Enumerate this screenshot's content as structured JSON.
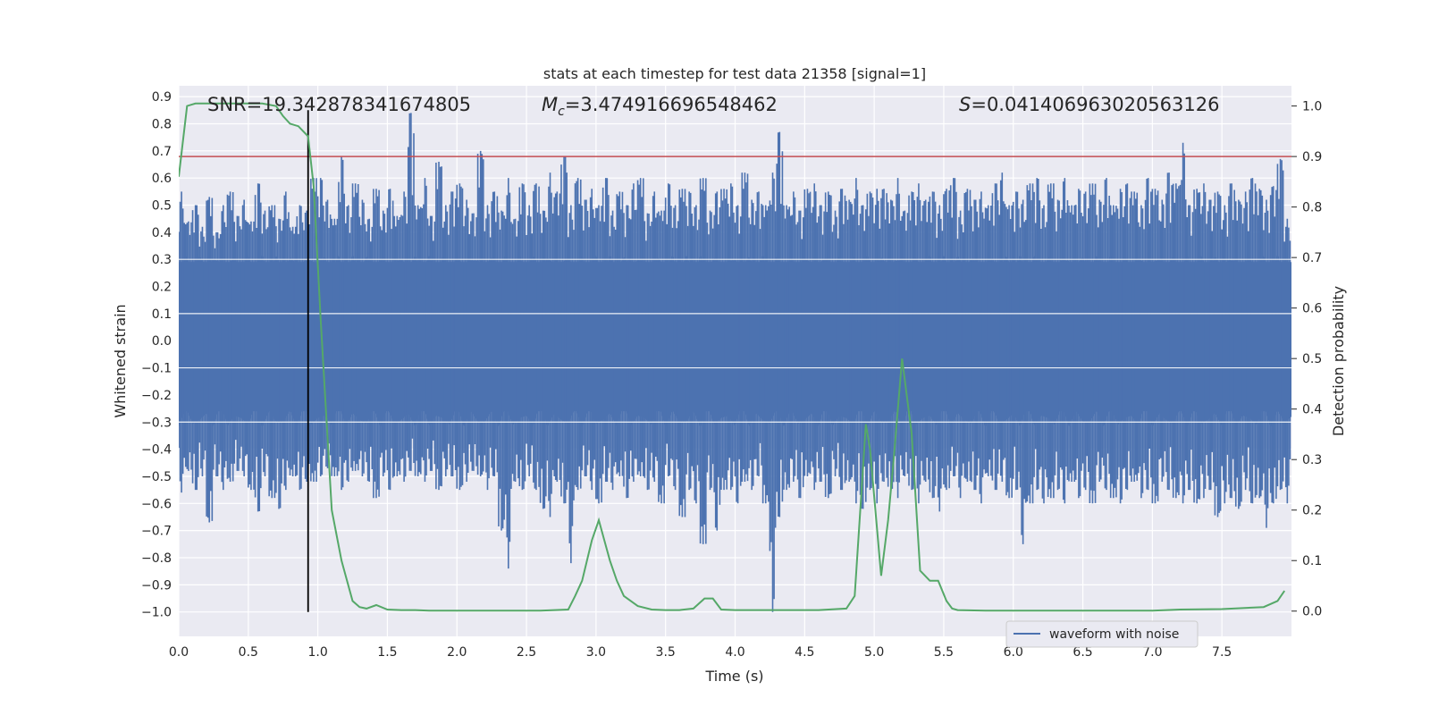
{
  "chart_data": {
    "type": "line",
    "title": "stats at each timestep for test data 21358 [signal=1]",
    "xlabel": "Time (s)",
    "ylabel": "Whitened strain",
    "y2label": "Detection probability",
    "xlim": [
      0.0,
      8.0
    ],
    "ylim": [
      -1.09,
      0.94
    ],
    "y2lim": [
      -0.05,
      1.04
    ],
    "x_ticks": [
      "0.0",
      "0.5",
      "1.0",
      "1.5",
      "2.0",
      "2.5",
      "3.0",
      "3.5",
      "4.0",
      "4.5",
      "5.0",
      "5.5",
      "6.0",
      "6.5",
      "7.0",
      "7.5"
    ],
    "y_ticks": [
      "0.9",
      "0.8",
      "0.7",
      "0.6",
      "0.5",
      "0.4",
      "0.3",
      "0.2",
      "0.1",
      "0.0",
      "-0.1",
      "-0.2",
      "-0.3",
      "-0.4",
      "-0.5",
      "-0.6",
      "-0.7",
      "-0.8",
      "-0.9",
      "-1.0"
    ],
    "y2_ticks": [
      "1.0",
      "0.9",
      "0.8",
      "0.7",
      "0.6",
      "0.5",
      "0.4",
      "0.3",
      "0.2",
      "0.1",
      "0.0"
    ],
    "grid": true,
    "legend": {
      "position": "bottom-right",
      "entries": [
        "waveform with noise"
      ]
    },
    "annotations": {
      "snr": "SNR=19.342878341674805",
      "mc_symbol": "M",
      "mc_sub": "c",
      "mc_value": "=3.474916696548462",
      "s_symbol": "S",
      "s_value": "=0.041406963020563126"
    },
    "threshold": {
      "axis": "y2",
      "value": 0.9
    },
    "vline": {
      "x": 0.93,
      "ymin": -1.0,
      "ymax": 0.85
    },
    "colors": {
      "waveform": "#4c72b0",
      "probability": "#55a868",
      "threshold": "#c44e52",
      "vline": "#000000",
      "background": "#eaeaf2",
      "grid": "#ffffff"
    },
    "series": [
      {
        "name": "waveform with noise",
        "axis": "y",
        "envelope_note": "dense noise; upper and lower extremes sampled every 0.05 s",
        "x": [
          0.0,
          0.05,
          0.1,
          0.15,
          0.2,
          0.25,
          0.3,
          0.35,
          0.4,
          0.45,
          0.5,
          0.55,
          0.6,
          0.65,
          0.7,
          0.75,
          0.8,
          0.85,
          0.9,
          0.95,
          1.0,
          1.05,
          1.1,
          1.15,
          1.2,
          1.25,
          1.3,
          1.35,
          1.4,
          1.45,
          1.5,
          1.55,
          1.6,
          1.65,
          1.7,
          1.75,
          1.8,
          1.85,
          1.9,
          1.95,
          2.0,
          2.05,
          2.1,
          2.15,
          2.2,
          2.25,
          2.3,
          2.35,
          2.4,
          2.45,
          2.5,
          2.55,
          2.6,
          2.65,
          2.7,
          2.75,
          2.8,
          2.85,
          2.9,
          2.95,
          3.0,
          3.05,
          3.1,
          3.15,
          3.2,
          3.25,
          3.3,
          3.35,
          3.4,
          3.45,
          3.5,
          3.55,
          3.6,
          3.65,
          3.7,
          3.75,
          3.8,
          3.85,
          3.9,
          3.95,
          4.0,
          4.05,
          4.1,
          4.15,
          4.2,
          4.25,
          4.3,
          4.35,
          4.4,
          4.45,
          4.5,
          4.55,
          4.6,
          4.65,
          4.7,
          4.75,
          4.8,
          4.85,
          4.9,
          4.95,
          5.0,
          5.05,
          5.1,
          5.15,
          5.2,
          5.25,
          5.3,
          5.35,
          5.4,
          5.45,
          5.5,
          5.55,
          5.6,
          5.65,
          5.7,
          5.75,
          5.8,
          5.85,
          5.9,
          5.95,
          6.0,
          6.05,
          6.1,
          6.15,
          6.2,
          6.25,
          6.3,
          6.35,
          6.4,
          6.45,
          6.5,
          6.55,
          6.6,
          6.65,
          6.7,
          6.75,
          6.8,
          6.85,
          6.9,
          6.95,
          7.0,
          7.05,
          7.1,
          7.15,
          7.2,
          7.25,
          7.3,
          7.35,
          7.4,
          7.45,
          7.5,
          7.55,
          7.6,
          7.65,
          7.7,
          7.75,
          7.8,
          7.85,
          7.9,
          7.95
        ],
        "y_upper": [
          0.55,
          0.44,
          0.5,
          0.42,
          0.53,
          0.4,
          0.5,
          0.55,
          0.46,
          0.52,
          0.44,
          0.58,
          0.48,
          0.5,
          0.45,
          0.55,
          0.42,
          0.5,
          0.48,
          0.6,
          0.6,
          0.52,
          0.45,
          0.68,
          0.5,
          0.58,
          0.52,
          0.45,
          0.56,
          0.48,
          0.56,
          0.46,
          0.55,
          0.84,
          0.5,
          0.6,
          0.46,
          0.66,
          0.5,
          0.55,
          0.58,
          0.52,
          0.47,
          0.7,
          0.5,
          0.55,
          0.48,
          0.6,
          0.45,
          0.58,
          0.5,
          0.58,
          0.48,
          0.62,
          0.55,
          0.68,
          0.5,
          0.6,
          0.52,
          0.56,
          0.5,
          0.6,
          0.48,
          0.55,
          0.5,
          0.58,
          0.6,
          0.47,
          0.55,
          0.48,
          0.58,
          0.5,
          0.56,
          0.55,
          0.5,
          0.6,
          0.48,
          0.55,
          0.56,
          0.58,
          0.5,
          0.62,
          0.52,
          0.55,
          0.5,
          0.62,
          0.77,
          0.5,
          0.55,
          0.48,
          0.56,
          0.58,
          0.5,
          0.55,
          0.48,
          0.56,
          0.52,
          0.6,
          0.5,
          0.55,
          0.56,
          0.56,
          0.52,
          0.6,
          0.48,
          0.55,
          0.58,
          0.52,
          0.55,
          0.5,
          0.56,
          0.6,
          0.48,
          0.56,
          0.52,
          0.55,
          0.5,
          0.58,
          0.62,
          0.5,
          0.55,
          0.52,
          0.58,
          0.6,
          0.5,
          0.58,
          0.52,
          0.6,
          0.5,
          0.56,
          0.55,
          0.58,
          0.52,
          0.6,
          0.5,
          0.56,
          0.58,
          0.55,
          0.5,
          0.6,
          0.56,
          0.52,
          0.62,
          0.58,
          0.73,
          0.5,
          0.56,
          0.58,
          0.52,
          0.55,
          0.5,
          0.58,
          0.52,
          0.55,
          0.6,
          0.56,
          0.52,
          0.57,
          0.67,
          0.45
        ],
        "y_lower": [
          -0.56,
          -0.48,
          -0.55,
          -0.5,
          -0.67,
          -0.5,
          -0.55,
          -0.52,
          -0.48,
          -0.5,
          -0.55,
          -0.63,
          -0.5,
          -0.58,
          -0.62,
          -0.55,
          -0.5,
          -0.55,
          -0.52,
          -0.52,
          -0.5,
          -0.47,
          -0.5,
          -0.55,
          -0.52,
          -0.48,
          -0.5,
          -0.52,
          -0.58,
          -0.5,
          -0.55,
          -0.5,
          -0.52,
          -0.48,
          -0.5,
          -0.52,
          -0.48,
          -0.55,
          -0.5,
          -0.5,
          -0.55,
          -0.52,
          -0.48,
          -0.5,
          -0.55,
          -0.5,
          -0.7,
          -0.84,
          -0.52,
          -0.55,
          -0.5,
          -0.55,
          -0.62,
          -0.65,
          -0.52,
          -0.6,
          -0.82,
          -0.55,
          -0.5,
          -0.55,
          -0.6,
          -0.52,
          -0.55,
          -0.5,
          -0.58,
          -0.52,
          -0.5,
          -0.55,
          -0.52,
          -0.6,
          -0.5,
          -0.55,
          -0.65,
          -0.55,
          -0.6,
          -0.75,
          -0.55,
          -0.7,
          -0.55,
          -0.55,
          -0.6,
          -0.52,
          -0.55,
          -0.5,
          -0.6,
          -1.0,
          -0.65,
          -0.55,
          -0.52,
          -0.58,
          -0.5,
          -0.55,
          -0.52,
          -0.58,
          -0.5,
          -0.55,
          -0.52,
          -0.6,
          -0.62,
          -0.55,
          -0.6,
          -0.52,
          -0.55,
          -0.58,
          -0.5,
          -0.55,
          -0.6,
          -0.52,
          -0.58,
          -0.63,
          -0.55,
          -0.5,
          -0.58,
          -0.52,
          -0.55,
          -0.6,
          -0.5,
          -0.55,
          -0.52,
          -0.58,
          -0.55,
          -0.75,
          -0.6,
          -0.55,
          -0.6,
          -0.58,
          -0.55,
          -0.6,
          -0.52,
          -0.58,
          -0.55,
          -0.6,
          -0.52,
          -0.55,
          -0.58,
          -0.6,
          -0.55,
          -0.52,
          -0.58,
          -0.55,
          -0.6,
          -0.52,
          -0.55,
          -0.58,
          -0.6,
          -0.55,
          -0.6,
          -0.58,
          -0.55,
          -0.65,
          -0.6,
          -0.58,
          -0.62,
          -0.55,
          -0.6,
          -0.58,
          -0.69,
          -0.6,
          -0.55,
          -0.6
        ]
      },
      {
        "axis": "y2",
        "x": [
          0.0,
          0.06,
          0.12,
          0.2,
          0.3,
          0.4,
          0.5,
          0.6,
          0.7,
          0.75,
          0.8,
          0.86,
          0.93,
          0.97,
          1.02,
          1.1,
          1.17,
          1.25,
          1.3,
          1.35,
          1.42,
          1.5,
          1.6,
          1.7,
          1.8,
          2.0,
          2.2,
          2.4,
          2.6,
          2.8,
          2.85,
          2.9,
          2.97,
          3.02,
          3.06,
          3.1,
          3.15,
          3.2,
          3.3,
          3.4,
          3.5,
          3.6,
          3.7,
          3.78,
          3.84,
          3.9,
          4.0,
          4.2,
          4.4,
          4.6,
          4.8,
          4.86,
          4.94,
          4.97,
          5.05,
          5.1,
          5.14,
          5.2,
          5.27,
          5.33,
          5.4,
          5.46,
          5.52,
          5.56,
          5.6,
          5.8,
          6.0,
          6.5,
          7.0,
          7.2,
          7.5,
          7.8,
          7.9,
          7.95
        ],
        "y": [
          0.86,
          1.0,
          1.005,
          1.005,
          1.005,
          1.005,
          1.005,
          1.005,
          1.0,
          0.98,
          0.965,
          0.96,
          0.94,
          0.84,
          0.58,
          0.2,
          0.1,
          0.02,
          0.008,
          0.005,
          0.012,
          0.003,
          0.002,
          0.002,
          0.001,
          0.001,
          0.001,
          0.001,
          0.001,
          0.003,
          0.03,
          0.06,
          0.14,
          0.18,
          0.14,
          0.1,
          0.06,
          0.03,
          0.01,
          0.003,
          0.002,
          0.002,
          0.005,
          0.025,
          0.025,
          0.003,
          0.002,
          0.002,
          0.002,
          0.002,
          0.005,
          0.03,
          0.37,
          0.32,
          0.07,
          0.18,
          0.3,
          0.5,
          0.35,
          0.08,
          0.06,
          0.06,
          0.02,
          0.005,
          0.002,
          0.001,
          0.001,
          0.001,
          0.001,
          0.003,
          0.004,
          0.008,
          0.02,
          0.04
        ]
      }
    ]
  }
}
